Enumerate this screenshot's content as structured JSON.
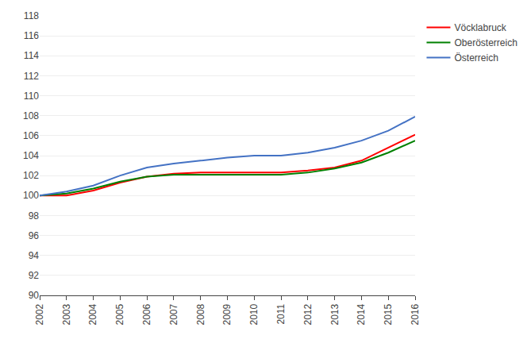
{
  "chart_data": {
    "type": "line",
    "x": [
      2002,
      2003,
      2004,
      2005,
      2006,
      2007,
      2008,
      2009,
      2010,
      2011,
      2012,
      2013,
      2014,
      2015,
      2016
    ],
    "xlim": [
      2002,
      2016
    ],
    "xticks": [
      2002,
      2003,
      2004,
      2005,
      2006,
      2007,
      2008,
      2009,
      2010,
      2011,
      2012,
      2013,
      2014,
      2015,
      2016
    ],
    "ylim": [
      90,
      118
    ],
    "yticks": [
      90,
      92,
      94,
      96,
      98,
      100,
      102,
      104,
      106,
      108,
      110,
      112,
      114,
      116,
      118
    ],
    "grid": true,
    "legend": "right",
    "series": [
      {
        "name": "Vöcklabruck",
        "color": "#ff0000",
        "values": [
          100.0,
          100.0,
          100.5,
          101.3,
          101.9,
          102.2,
          102.3,
          102.3,
          102.3,
          102.3,
          102.5,
          102.8,
          103.5,
          104.8,
          106.1
        ]
      },
      {
        "name": "Oberösterreich",
        "color": "#008000",
        "values": [
          100.0,
          100.2,
          100.7,
          101.4,
          101.9,
          102.1,
          102.1,
          102.1,
          102.1,
          102.1,
          102.3,
          102.7,
          103.3,
          104.3,
          105.5
        ]
      },
      {
        "name": "Österreich",
        "color": "#4472c4",
        "values": [
          100.0,
          100.4,
          101.0,
          102.0,
          102.8,
          103.2,
          103.5,
          103.8,
          104.0,
          104.0,
          104.3,
          104.8,
          105.5,
          106.5,
          107.9
        ]
      }
    ]
  }
}
